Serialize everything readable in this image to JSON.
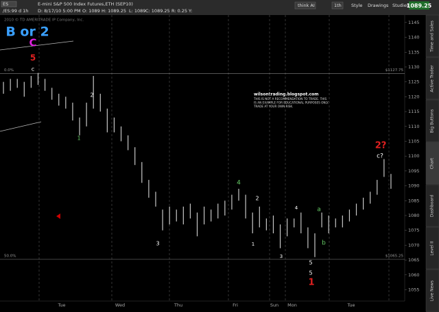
{
  "toolbar": {
    "symbol": "ES",
    "chart_id": "/ES:99 d 1h",
    "description": "E-mini S&P 500 Index Futures,ETH (SEP10)",
    "date": "D: 8/17/10 5:00 PM",
    "open": "O: 1089",
    "high": "H: 1089.25",
    "low": "L: 1089",
    "close": "C: 1089.25",
    "range": "R: 0.25",
    "y": "Y:",
    "think": "think AI",
    "period": "1th",
    "style": "Style",
    "drawings": "Drawings",
    "studies": "Studies",
    "last_price": "1089.25"
  },
  "side_tabs": [
    "Time and Sales",
    "Active Trader",
    "Big Buttons",
    "Chart",
    "Dashboard",
    "Level II",
    "Live News"
  ],
  "chart_data": {
    "type": "hl-bars",
    "watermark": "2010 © TD AMERITRADE IP Company, Inc.",
    "bar_color": "#c8c8c8",
    "ylim": [
      1053.5,
      1147.5
    ],
    "yticks": [
      1055,
      1060,
      1065,
      1070,
      1075,
      1080,
      1085,
      1090,
      1095,
      1100,
      1105,
      1110,
      1115,
      1120,
      1125,
      1130,
      1135,
      1140,
      1145
    ],
    "day_labels": [
      "Tue",
      "Wed",
      "Thu",
      "Fri",
      "Sun",
      "Mon",
      "Tue"
    ],
    "lows": [
      1121,
      1122,
      1123,
      1120,
      1123,
      1124,
      1122,
      1119,
      1117,
      1116,
      1112,
      1107,
      1110,
      1116,
      1115,
      1108,
      1108,
      1105,
      1102,
      1097,
      1091,
      1086,
      1083,
      1075,
      1077,
      1078,
      1077,
      1079,
      1073,
      1077,
      1078,
      1079,
      1080,
      1082,
      1085,
      1079,
      1074,
      1076,
      1075,
      1074,
      1069,
      1073,
      1076,
      1074,
      1069,
      1066,
      1076,
      1074,
      1076,
      1076,
      1078,
      1080,
      1082,
      1084,
      1087,
      1093,
      1089
    ],
    "highs": [
      1125,
      1126,
      1126,
      1125,
      1127,
      1128,
      1126,
      1123,
      1121,
      1120,
      1118,
      1113,
      1118,
      1127,
      1121,
      1116,
      1113,
      1110,
      1107,
      1103,
      1098,
      1092,
      1088,
      1082,
      1083,
      1082,
      1083,
      1084,
      1081,
      1083,
      1082,
      1084,
      1085,
      1087,
      1089,
      1087,
      1081,
      1083,
      1079,
      1080,
      1077,
      1079,
      1079,
      1081,
      1076,
      1074,
      1081,
      1080,
      1079,
      1080,
      1082,
      1084,
      1086,
      1088,
      1092,
      1099,
      1094
    ],
    "fib_levels": [
      {
        "percent": "0.0%",
        "value": 1127.75,
        "label": "$1127.75"
      },
      {
        "percent": "50.0%",
        "value": 1065.25,
        "label": "$1065.25"
      }
    ],
    "note": {
      "title": "wilsontrading.blogspot.com",
      "lines": [
        "THIS IS NOT A RECOMMENDATION TO TRADE. THIS",
        "IS AN EXAMPLE FOR EDUCATIONAL PURPOSES ONLY.",
        "TRADE AT YOUR OWN RISK."
      ]
    },
    "annotations": [
      "B or 2",
      "C",
      "5",
      "c",
      "2",
      "1",
      "3",
      "4",
      "2",
      "1",
      "4",
      "3",
      "a",
      "b",
      "5",
      "5",
      "1",
      "2?",
      "c?"
    ]
  }
}
